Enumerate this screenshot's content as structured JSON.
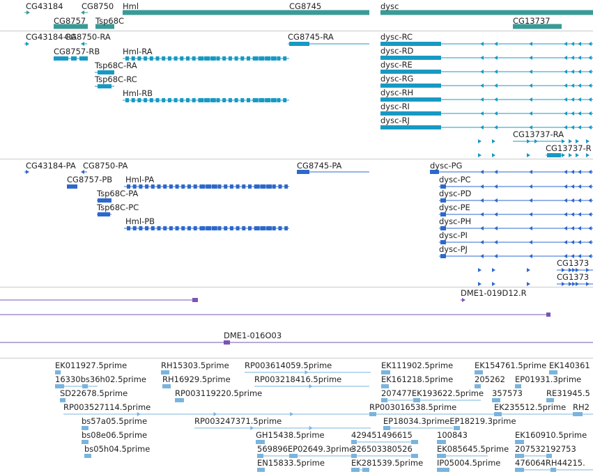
{
  "colors": {
    "gene": "#3a9a96",
    "transcript": "#1899c4",
    "protein": "#2d68cc",
    "clone": "#7a55b5",
    "est": "#7ab4dd",
    "separator": "#c9c9c9"
  },
  "tracks": {
    "genes": {
      "features": [
        {
          "label": "CG43184"
        },
        {
          "label": "CG8757"
        },
        {
          "label": "CG8750"
        },
        {
          "label": "Tsp68C"
        },
        {
          "label": "Hml"
        },
        {
          "label": "CG8745"
        },
        {
          "label": "dysc"
        },
        {
          "label": "CG13737"
        }
      ]
    },
    "transcripts": {
      "features": [
        {
          "label": "CG43184-RA"
        },
        {
          "label": "CG8750-RA"
        },
        {
          "label": "CG8757-RB"
        },
        {
          "label": "Hml-RA"
        },
        {
          "label": "Tsp68C-RA"
        },
        {
          "label": "Tsp68C-RC"
        },
        {
          "label": "Hml-RB"
        },
        {
          "label": "CG8745-RA"
        },
        {
          "label": "dysc-RC"
        },
        {
          "label": "dysc-RD"
        },
        {
          "label": "dysc-RE"
        },
        {
          "label": "dysc-RG"
        },
        {
          "label": "dysc-RH"
        },
        {
          "label": "dysc-RI"
        },
        {
          "label": "dysc-RJ"
        },
        {
          "label": "CG13737-RA"
        },
        {
          "label": "CG13737-R"
        }
      ]
    },
    "proteins": {
      "features": [
        {
          "label": "CG43184-PA"
        },
        {
          "label": "CG8750-PA"
        },
        {
          "label": "CG8757-PB"
        },
        {
          "label": "Hml-PA"
        },
        {
          "label": "Tsp68C-PA"
        },
        {
          "label": "Tsp68C-PC"
        },
        {
          "label": "Hml-PB"
        },
        {
          "label": "CG8745-PA"
        },
        {
          "label": "dysc-PG"
        },
        {
          "label": "dysc-PC"
        },
        {
          "label": "dysc-PD"
        },
        {
          "label": "dysc-PE"
        },
        {
          "label": "dysc-PH"
        },
        {
          "label": "dysc-PI"
        },
        {
          "label": "dysc-PJ"
        },
        {
          "label": "CG1373"
        },
        {
          "label": "CG1373"
        }
      ]
    },
    "clones": {
      "features": [
        {
          "label": ""
        },
        {
          "label": "DME1-019D12.R"
        },
        {
          "label": ""
        },
        {
          "label": "DME1-016O03"
        }
      ]
    },
    "ests": {
      "features": [
        {
          "label": "EK011927.5prime"
        },
        {
          "label": "RH15303.5prime"
        },
        {
          "label": "RP003614059.5prime"
        },
        {
          "label": "EK111902.5prime"
        },
        {
          "label": "EK154761.5prime"
        },
        {
          "label": "EK140361"
        },
        {
          "label": "16330bs36h02.5prime"
        },
        {
          "label": "RH16929.5prime"
        },
        {
          "label": "RP003218416.5prime"
        },
        {
          "label": "EK161218.5prime"
        },
        {
          "label": "205262"
        },
        {
          "label": "EP01931.3prime"
        },
        {
          "label": "SD22678.5prime"
        },
        {
          "label": "RP003119220.5prime"
        },
        {
          "label": "207477EK193622.5prime"
        },
        {
          "label": "357573"
        },
        {
          "label": "RE31945.5"
        },
        {
          "label": "RP003527114.5prime"
        },
        {
          "label": "RP003016538.5prime"
        },
        {
          "label": "EK235512.5prime"
        },
        {
          "label": "RH2"
        },
        {
          "label": "bs57a05.5prime"
        },
        {
          "label": "RP003247371.5prime"
        },
        {
          "label": "EP18034.3primeEP18219.3prime"
        },
        {
          "label": "bs08e06.5prime"
        },
        {
          "label": "GH15438.5prime"
        },
        {
          "label": "429451496615"
        },
        {
          "label": "100843"
        },
        {
          "label": "EK160910.5prime"
        },
        {
          "label": "bs05h04.5prime"
        },
        {
          "label": "569896EP02649.3prime"
        },
        {
          "label": "326503380526"
        },
        {
          "label": "EK085645.5prime"
        },
        {
          "label": "207532192753"
        },
        {
          "label": "EN15833.5prime"
        },
        {
          "label": "EK281539.5prime"
        },
        {
          "label": "IP05004.5prime"
        },
        {
          "label": "476064RH44215."
        }
      ]
    }
  }
}
